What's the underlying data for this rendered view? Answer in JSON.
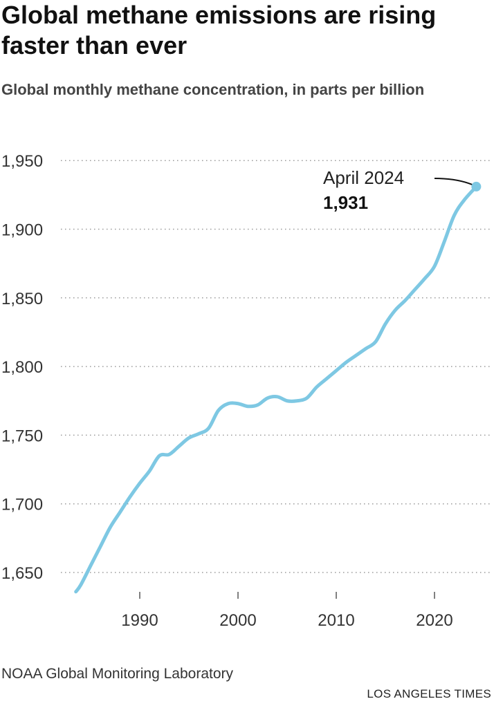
{
  "title": "Global methane emissions are rising faster than ever",
  "subtitle": "Global monthly methane concentration, in parts per billion",
  "source": "NOAA Global Monitoring Laboratory",
  "credit": "LOS ANGELES TIMES",
  "chart_data": {
    "type": "line",
    "title": "Global methane emissions are rising faster than ever",
    "ylabel": "Global monthly methane concentration, in parts per billion",
    "xlim": [
      1983,
      2025
    ],
    "ylim": [
      1630,
      1960
    ],
    "grid": "horizontal dotted",
    "line_color": "#7ec8e3",
    "y_ticks": [
      {
        "v": 1650,
        "label": "1,650"
      },
      {
        "v": 1700,
        "label": "1,700"
      },
      {
        "v": 1750,
        "label": "1,750"
      },
      {
        "v": 1800,
        "label": "1,800"
      },
      {
        "v": 1850,
        "label": "1,850"
      },
      {
        "v": 1900,
        "label": "1,900"
      },
      {
        "v": 1950,
        "label": "1,950"
      }
    ],
    "x_ticks": [
      {
        "v": 1990,
        "label": "1990"
      },
      {
        "v": 2000,
        "label": "2000"
      },
      {
        "v": 2010,
        "label": "2010"
      },
      {
        "v": 2020,
        "label": "2020"
      }
    ],
    "x": [
      1983.5,
      1984,
      1985,
      1986,
      1987,
      1988,
      1989,
      1990,
      1991,
      1992,
      1993,
      1994,
      1995,
      1996,
      1997,
      1998,
      1999,
      2000,
      2001,
      2002,
      2003,
      2004,
      2005,
      2006,
      2007,
      2008,
      2009,
      2010,
      2011,
      2012,
      2013,
      2014,
      2015,
      2016,
      2017,
      2018,
      2019,
      2020,
      2021,
      2022,
      2023,
      2024.25
    ],
    "y": [
      1636,
      1641,
      1655,
      1669,
      1683,
      1694,
      1705,
      1715,
      1724,
      1735,
      1736,
      1742,
      1748,
      1751,
      1755,
      1768,
      1773,
      1773,
      1771,
      1772,
      1777,
      1778,
      1775,
      1775,
      1777,
      1785,
      1791,
      1797,
      1803,
      1808,
      1813,
      1818,
      1831,
      1841,
      1848,
      1856,
      1864,
      1873,
      1891,
      1910,
      1921,
      1931
    ],
    "annotation": {
      "label": "April 2024",
      "value": "1,931",
      "x": 2024.25,
      "y": 1931
    }
  }
}
